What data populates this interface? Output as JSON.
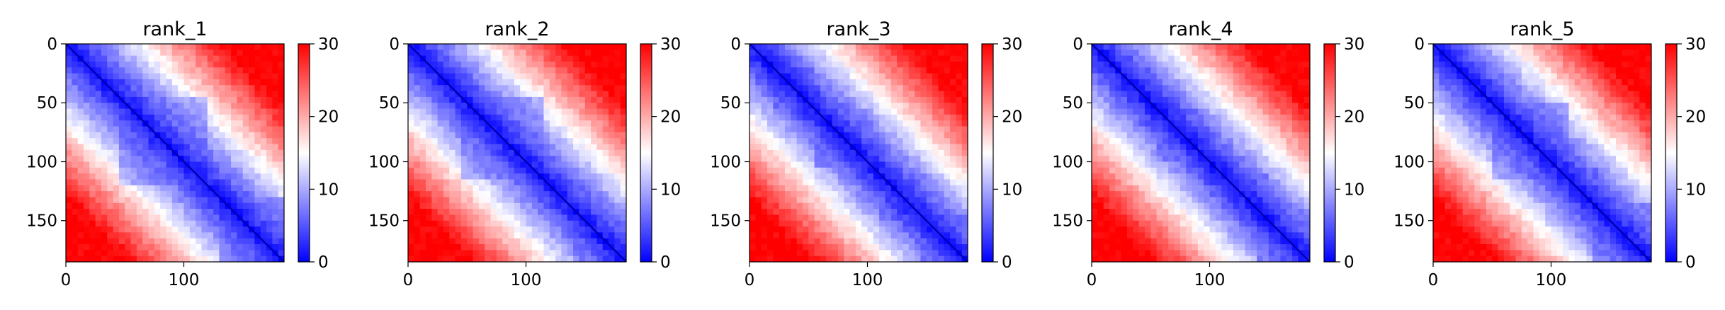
{
  "figure": {
    "background": "#ffffff",
    "colormap": {
      "name": "bwr",
      "low": "#0000ff",
      "mid": "#ffffff",
      "high": "#ff0000"
    }
  },
  "chart_data": [
    {
      "type": "heatmap",
      "title": "rank_1",
      "xlabel": "",
      "ylabel": "",
      "size": 185,
      "xlim": [
        0,
        185
      ],
      "ylim": [
        185,
        0
      ],
      "xticks": [
        0,
        100
      ],
      "yticks": [
        0,
        50,
        100,
        150
      ],
      "colorbar": {
        "min": 0,
        "max": 30,
        "ticks": [
          0,
          10,
          20,
          30
        ]
      },
      "diagonal_domains": [
        [
          0,
          20
        ],
        [
          20,
          45
        ],
        [
          45,
          120
        ],
        [
          110,
          140
        ],
        [
          130,
          185
        ]
      ],
      "off_diagonal_level": 30
    },
    {
      "type": "heatmap",
      "title": "rank_2",
      "xlabel": "",
      "ylabel": "",
      "size": 185,
      "xlim": [
        0,
        185
      ],
      "ylim": [
        185,
        0
      ],
      "xticks": [
        0,
        100
      ],
      "yticks": [
        0,
        50,
        100,
        150
      ],
      "colorbar": {
        "min": 0,
        "max": 30,
        "ticks": [
          0,
          10,
          20,
          30
        ]
      },
      "diagonal_domains": [
        [
          0,
          20
        ],
        [
          20,
          45
        ],
        [
          45,
          115
        ],
        [
          110,
          145
        ],
        [
          140,
          185
        ]
      ],
      "off_diagonal_level": 30
    },
    {
      "type": "heatmap",
      "title": "rank_3",
      "xlabel": "",
      "ylabel": "",
      "size": 185,
      "xlim": [
        0,
        185
      ],
      "ylim": [
        185,
        0
      ],
      "xticks": [
        0,
        100
      ],
      "yticks": [
        0,
        50,
        100,
        150
      ],
      "colorbar": {
        "min": 0,
        "max": 30,
        "ticks": [
          0,
          10,
          20,
          30
        ]
      },
      "diagonal_domains": [
        [
          0,
          20
        ],
        [
          20,
          55
        ],
        [
          55,
          105
        ],
        [
          110,
          150
        ],
        [
          145,
          185
        ]
      ],
      "off_diagonal_level": 30
    },
    {
      "type": "heatmap",
      "title": "rank_4",
      "xlabel": "",
      "ylabel": "",
      "size": 185,
      "xlim": [
        0,
        185
      ],
      "ylim": [
        185,
        0
      ],
      "xticks": [
        0,
        100
      ],
      "yticks": [
        0,
        50,
        100,
        150
      ],
      "colorbar": {
        "min": 0,
        "max": 30,
        "ticks": [
          0,
          10,
          20,
          30
        ]
      },
      "diagonal_domains": [
        [
          0,
          20
        ],
        [
          20,
          55
        ],
        [
          55,
          100
        ],
        [
          110,
          150
        ],
        [
          140,
          185
        ]
      ],
      "off_diagonal_level": 30
    },
    {
      "type": "heatmap",
      "title": "rank_5",
      "xlabel": "",
      "ylabel": "",
      "size": 185,
      "xlim": [
        0,
        185
      ],
      "ylim": [
        185,
        0
      ],
      "xticks": [
        0,
        100
      ],
      "yticks": [
        0,
        50,
        100,
        150
      ],
      "colorbar": {
        "min": 0,
        "max": 30,
        "ticks": [
          0,
          10,
          20,
          30
        ]
      },
      "diagonal_domains": [
        [
          0,
          20
        ],
        [
          20,
          50
        ],
        [
          50,
          115
        ],
        [
          105,
          140
        ],
        [
          135,
          185
        ]
      ],
      "off_diagonal_level": 30
    }
  ]
}
